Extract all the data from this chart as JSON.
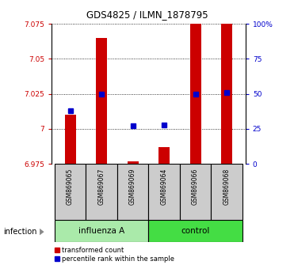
{
  "title": "GDS4825 / ILMN_1878795",
  "samples": [
    "GSM869065",
    "GSM869067",
    "GSM869069",
    "GSM869064",
    "GSM869066",
    "GSM869068"
  ],
  "group_labels": [
    "influenza A",
    "control"
  ],
  "factor_label": "infection",
  "ylim_left": [
    6.975,
    7.075
  ],
  "yticks_left": [
    6.975,
    7.0,
    7.025,
    7.05,
    7.075
  ],
  "ytick_labels_left": [
    "6.975",
    "7",
    "7.025",
    "7.05",
    "7.075"
  ],
  "ylim_right": [
    0,
    100
  ],
  "yticks_right": [
    0,
    25,
    50,
    75,
    100
  ],
  "ytick_labels_right": [
    "0",
    "25",
    "50",
    "75",
    "100%"
  ],
  "red_values": [
    7.01,
    7.065,
    6.977,
    6.987,
    7.075,
    7.075
  ],
  "red_base": 6.975,
  "blue_values": [
    7.013,
    7.025,
    7.002,
    7.003,
    7.025,
    7.026
  ],
  "red_color": "#cc0000",
  "blue_color": "#0000cc",
  "bg_sample": "#cccccc",
  "bg_influenza": "#aaeaaa",
  "bg_control": "#44dd44",
  "legend_red": "transformed count",
  "legend_blue": "percentile rank within the sample"
}
